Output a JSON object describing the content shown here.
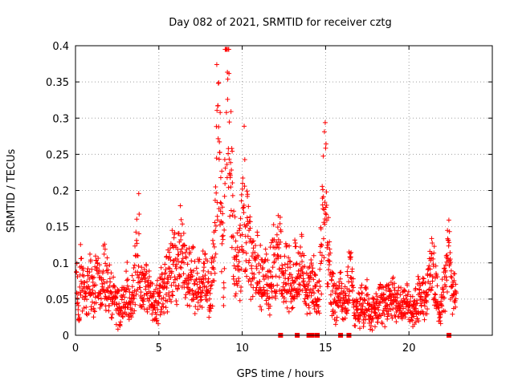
{
  "chart_data": {
    "type": "scatter",
    "title": "Day 082 of 2021, SRMTID for receiver cztg",
    "xlabel": "GPS time / hours",
    "ylabel": "SRMTID / TECUs",
    "xlim": [
      0,
      25
    ],
    "ylim": [
      0,
      0.4
    ],
    "x_ticks": [
      0,
      5,
      10,
      15,
      20
    ],
    "x_tick_labels": [
      "0",
      "5",
      "10",
      "15",
      "20"
    ],
    "y_ticks": [
      0,
      0.05,
      0.1,
      0.15,
      0.2,
      0.25,
      0.3,
      0.35,
      0.4
    ],
    "y_tick_labels": [
      "0",
      "0.05",
      "0.1",
      "0.15",
      "0.2",
      "0.25",
      "0.3",
      "0.35",
      "0.4"
    ],
    "grid": true,
    "marker": "+",
    "color": "#ff0000",
    "zero_points_x": [
      12.3,
      13.3,
      14.0,
      14.2,
      14.5,
      15.9,
      16.4,
      22.4
    ],
    "series": [
      {
        "name": "SRMTID",
        "points": [
          [
            0.1,
            0.07
          ],
          [
            0.2,
            0.03
          ],
          [
            0.3,
            0.09
          ],
          [
            0.5,
            0.06
          ],
          [
            0.7,
            0.07
          ],
          [
            0.9,
            0.08
          ],
          [
            1.1,
            0.05
          ],
          [
            1.3,
            0.1
          ],
          [
            1.5,
            0.06
          ],
          [
            1.7,
            0.09
          ],
          [
            1.9,
            0.07
          ],
          [
            2.1,
            0.06
          ],
          [
            2.3,
            0.05
          ],
          [
            2.5,
            0.04
          ],
          [
            2.7,
            0.03
          ],
          [
            2.9,
            0.05
          ],
          [
            3.1,
            0.06
          ],
          [
            3.3,
            0.04
          ],
          [
            3.5,
            0.07
          ],
          [
            3.8,
            0.13
          ],
          [
            3.9,
            0.06
          ],
          [
            4.2,
            0.07
          ],
          [
            4.5,
            0.05
          ],
          [
            4.8,
            0.04
          ],
          [
            5.0,
            0.05
          ],
          [
            5.2,
            0.06
          ],
          [
            5.5,
            0.07
          ],
          [
            5.7,
            0.09
          ],
          [
            5.9,
            0.11
          ],
          [
            6.1,
            0.08
          ],
          [
            6.3,
            0.12
          ],
          [
            6.6,
            0.09
          ],
          [
            6.8,
            0.08
          ],
          [
            7.0,
            0.1
          ],
          [
            7.2,
            0.06
          ],
          [
            7.4,
            0.08
          ],
          [
            7.6,
            0.07
          ],
          [
            7.8,
            0.09
          ],
          [
            8.0,
            0.05
          ],
          [
            8.2,
            0.08
          ],
          [
            8.4,
            0.14
          ],
          [
            8.5,
            0.3
          ],
          [
            8.6,
            0.25
          ],
          [
            8.7,
            0.2
          ],
          [
            8.8,
            0.17
          ],
          [
            8.9,
            0.05
          ],
          [
            9.0,
            0.35
          ],
          [
            9.1,
            0.33
          ],
          [
            9.2,
            0.28
          ],
          [
            9.3,
            0.22
          ],
          [
            9.4,
            0.17
          ],
          [
            9.5,
            0.12
          ],
          [
            9.7,
            0.09
          ],
          [
            9.9,
            0.11
          ],
          [
            10.1,
            0.2
          ],
          [
            10.2,
            0.16
          ],
          [
            10.4,
            0.13
          ],
          [
            10.6,
            0.08
          ],
          [
            10.8,
            0.1
          ],
          [
            11.0,
            0.09
          ],
          [
            11.2,
            0.07
          ],
          [
            11.4,
            0.08
          ],
          [
            11.6,
            0.06
          ],
          [
            11.8,
            0.11
          ],
          [
            12.0,
            0.09
          ],
          [
            12.2,
            0.14
          ],
          [
            12.4,
            0.07
          ],
          [
            12.6,
            0.09
          ],
          [
            12.8,
            0.08
          ],
          [
            13.0,
            0.06
          ],
          [
            13.2,
            0.1
          ],
          [
            13.4,
            0.07
          ],
          [
            13.6,
            0.11
          ],
          [
            13.8,
            0.05
          ],
          [
            14.0,
            0.06
          ],
          [
            14.3,
            0.07
          ],
          [
            14.6,
            0.05
          ],
          [
            14.9,
            0.19
          ],
          [
            15.0,
            0.22
          ],
          [
            15.1,
            0.14
          ],
          [
            15.3,
            0.06
          ],
          [
            15.6,
            0.05
          ],
          [
            15.9,
            0.06
          ],
          [
            16.2,
            0.04
          ],
          [
            16.5,
            0.09
          ],
          [
            16.8,
            0.03
          ],
          [
            17.1,
            0.04
          ],
          [
            17.4,
            0.05
          ],
          [
            17.7,
            0.03
          ],
          [
            18.0,
            0.04
          ],
          [
            18.3,
            0.05
          ],
          [
            18.6,
            0.04
          ],
          [
            18.9,
            0.06
          ],
          [
            19.2,
            0.05
          ],
          [
            19.5,
            0.04
          ],
          [
            19.8,
            0.05
          ],
          [
            20.1,
            0.03
          ],
          [
            20.4,
            0.04
          ],
          [
            20.7,
            0.06
          ],
          [
            21.0,
            0.05
          ],
          [
            21.2,
            0.08
          ],
          [
            21.4,
            0.1
          ],
          [
            21.6,
            0.06
          ],
          [
            21.8,
            0.04
          ],
          [
            22.0,
            0.05
          ],
          [
            22.2,
            0.08
          ],
          [
            22.4,
            0.12
          ],
          [
            22.6,
            0.06
          ],
          [
            22.8,
            0.05
          ]
        ]
      }
    ]
  }
}
